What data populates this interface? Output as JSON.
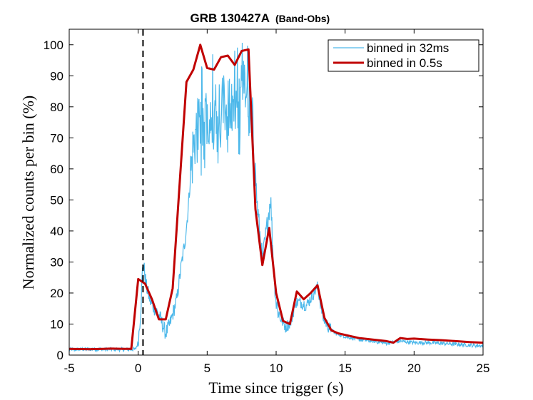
{
  "chart_data": {
    "type": "line",
    "title": "GRB 130427A",
    "subtitle": "(Band-Obs)",
    "xlabel": "Time since trigger (s)",
    "ylabel": "Normalized counts per bin (%)",
    "xlim": [
      -5,
      25
    ],
    "ylim": [
      0,
      105
    ],
    "xticks": [
      -5,
      0,
      5,
      10,
      15,
      20,
      25
    ],
    "yticks": [
      0,
      10,
      20,
      30,
      40,
      50,
      60,
      70,
      80,
      90,
      100
    ],
    "grid": false,
    "legend_position": "top-right",
    "vline": {
      "x": 0.35,
      "style": "dashed",
      "color": "#000000"
    },
    "series": [
      {
        "name": "binned in 32ms",
        "color": "#4db8ea",
        "anchors": [
          [
            -5,
            1.8
          ],
          [
            -3,
            1.9
          ],
          [
            -1,
            1.8
          ],
          [
            -0.2,
            1.9
          ],
          [
            0,
            4
          ],
          [
            0.2,
            15
          ],
          [
            0.3,
            27
          ],
          [
            0.4,
            29
          ],
          [
            0.6,
            22
          ],
          [
            0.9,
            17
          ],
          [
            1.2,
            15
          ],
          [
            1.5,
            13
          ],
          [
            2.0,
            7
          ],
          [
            2.3,
            10
          ],
          [
            2.8,
            18
          ],
          [
            3.1,
            28
          ],
          [
            3.4,
            37
          ],
          [
            3.6,
            46
          ],
          [
            3.8,
            58
          ],
          [
            4.0,
            67
          ],
          [
            4.2,
            72
          ],
          [
            4.4,
            72
          ],
          [
            4.7,
            76
          ],
          [
            5.2,
            78
          ],
          [
            6.0,
            80
          ],
          [
            7.0,
            80
          ],
          [
            7.6,
            84
          ],
          [
            7.8,
            85
          ],
          [
            8.1,
            77
          ],
          [
            8.4,
            70
          ],
          [
            8.6,
            50
          ],
          [
            8.8,
            40
          ],
          [
            9.0,
            30
          ],
          [
            9.3,
            40
          ],
          [
            9.6,
            51
          ],
          [
            9.8,
            30
          ],
          [
            10.0,
            17
          ],
          [
            10.3,
            12
          ],
          [
            10.7,
            9
          ],
          [
            11.1,
            11
          ],
          [
            11.4,
            17
          ],
          [
            11.8,
            17
          ],
          [
            12.2,
            16
          ],
          [
            12.6,
            19
          ],
          [
            13.0,
            22
          ],
          [
            13.4,
            12
          ],
          [
            13.8,
            9
          ],
          [
            14.3,
            7
          ],
          [
            15.0,
            6
          ],
          [
            16.0,
            5
          ],
          [
            17.0,
            4.5
          ],
          [
            18.0,
            3.8
          ],
          [
            19.0,
            4.5
          ],
          [
            20.0,
            4
          ],
          [
            21.0,
            4
          ],
          [
            22.0,
            3.8
          ],
          [
            23.0,
            3.5
          ],
          [
            24.0,
            3.2
          ],
          [
            25.0,
            3
          ]
        ]
      },
      {
        "name": "binned in 0.5s",
        "color": "#c00000",
        "x": [
          -5,
          -3.5,
          -2.5,
          -2,
          -1,
          -0.5,
          0,
          0.5,
          1,
          1.5,
          2,
          2.5,
          3,
          3.5,
          4,
          4.5,
          5,
          5.5,
          6,
          6.5,
          7,
          7.5,
          8,
          8.5,
          9,
          9.5,
          10,
          10.5,
          11,
          11.5,
          12,
          12.5,
          13,
          13.5,
          14,
          14.5,
          15,
          16,
          17,
          18,
          18.5,
          19,
          19.5,
          20,
          21,
          22,
          23,
          24,
          25
        ],
        "y": [
          2,
          1.9,
          2,
          2.1,
          2,
          2,
          24.5,
          23,
          18,
          11.5,
          11.5,
          21.5,
          55,
          88,
          92,
          100,
          92.5,
          92,
          96,
          96.5,
          93.5,
          98,
          98.5,
          47,
          29,
          41,
          20,
          11,
          10,
          20.5,
          18,
          20,
          22.5,
          12,
          8,
          7,
          6.5,
          5.5,
          5,
          4.5,
          4,
          5.5,
          5.2,
          5.3,
          5,
          4.8,
          4.5,
          4.2,
          4
        ]
      }
    ]
  }
}
